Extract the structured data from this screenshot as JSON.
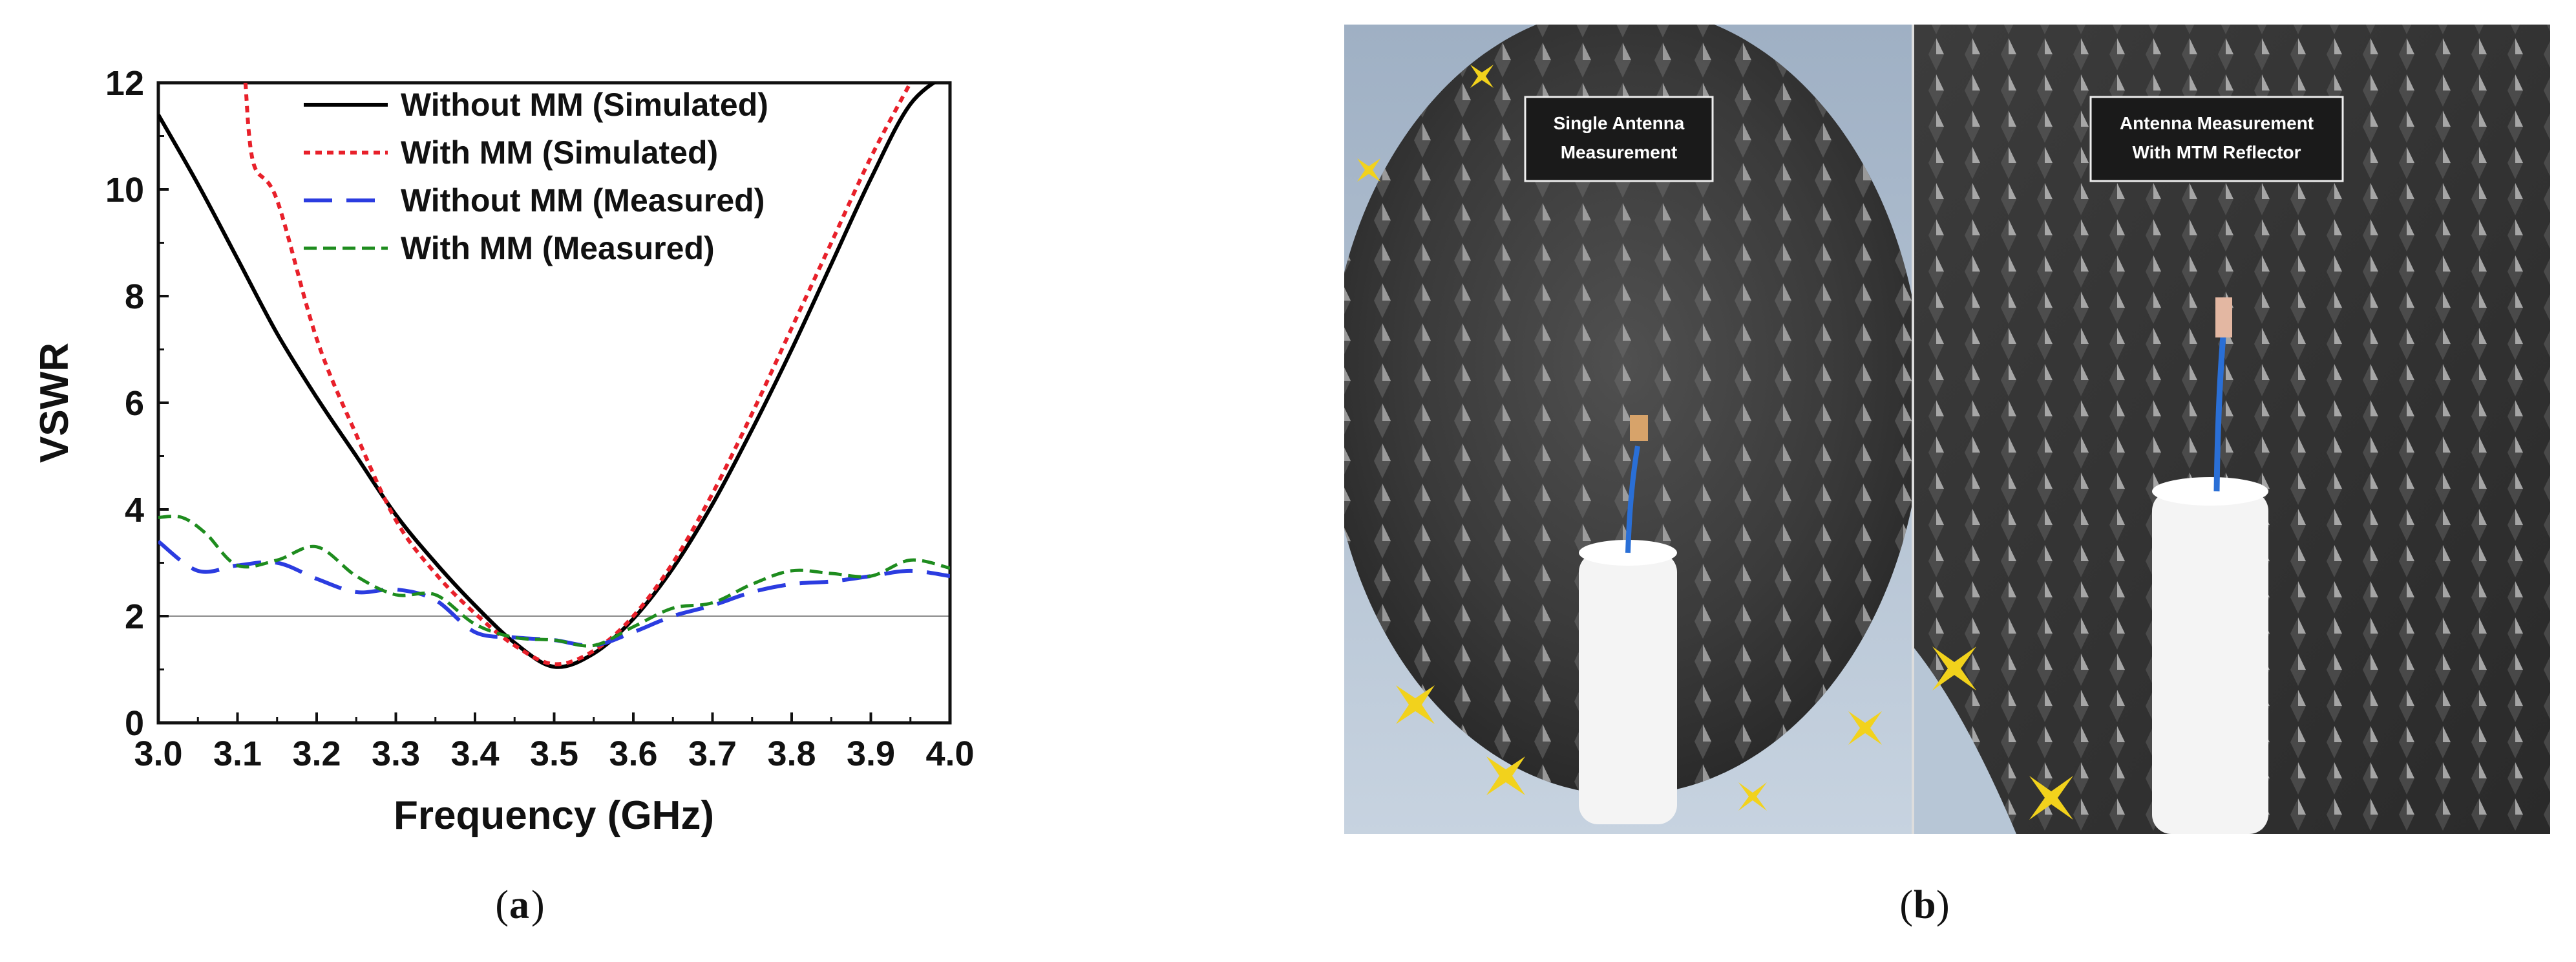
{
  "chart_data": {
    "type": "line",
    "xlabel": "Frequency (GHz)",
    "ylabel": "VSWR",
    "xlim": [
      3.0,
      4.0
    ],
    "ylim": [
      0,
      12
    ],
    "xticks": [
      "3.0",
      "3.1",
      "3.2",
      "3.3",
      "3.4",
      "3.5",
      "3.6",
      "3.7",
      "3.8",
      "3.9",
      "4.0"
    ],
    "yticks": [
      "0",
      "2",
      "4",
      "6",
      "8",
      "10",
      "12"
    ],
    "reference_line": 2,
    "legend_position": "top-inside",
    "series": [
      {
        "name": "Without MM (Simulated)",
        "color": "#000000",
        "style": "solid",
        "x": [
          3.0,
          3.05,
          3.1,
          3.15,
          3.2,
          3.25,
          3.3,
          3.35,
          3.4,
          3.45,
          3.5,
          3.55,
          3.6,
          3.65,
          3.7,
          3.75,
          3.8,
          3.85,
          3.9,
          3.95,
          4.0
        ],
        "y": [
          11.4,
          10.1,
          8.7,
          7.3,
          6.1,
          5.0,
          3.9,
          3.0,
          2.2,
          1.5,
          1.05,
          1.3,
          1.95,
          2.9,
          4.1,
          5.5,
          7.0,
          8.6,
          10.2,
          11.6,
          12.2
        ]
      },
      {
        "name": "With MM (Simulated)",
        "color": "#e8202a",
        "style": "dotted",
        "x": [
          3.11,
          3.12,
          3.15,
          3.2,
          3.25,
          3.3,
          3.35,
          3.4,
          3.45,
          3.5,
          3.55,
          3.6,
          3.65,
          3.7,
          3.75,
          3.8,
          3.85,
          3.9,
          3.95
        ],
        "y": [
          12.0,
          10.5,
          9.8,
          7.2,
          5.4,
          3.8,
          2.8,
          2.05,
          1.45,
          1.1,
          1.35,
          2.0,
          3.0,
          4.3,
          5.8,
          7.4,
          9.0,
          10.6,
          12.0
        ]
      },
      {
        "name": "Without MM (Measured)",
        "color": "#2b3ce0",
        "style": "dashed",
        "x": [
          3.0,
          3.05,
          3.1,
          3.15,
          3.2,
          3.25,
          3.3,
          3.35,
          3.4,
          3.45,
          3.5,
          3.55,
          3.6,
          3.65,
          3.7,
          3.75,
          3.8,
          3.85,
          3.9,
          3.95,
          4.0
        ],
        "y": [
          3.4,
          2.85,
          2.95,
          3.0,
          2.7,
          2.45,
          2.5,
          2.3,
          1.7,
          1.6,
          1.55,
          1.45,
          1.7,
          2.0,
          2.2,
          2.45,
          2.6,
          2.65,
          2.75,
          2.85,
          2.75
        ]
      },
      {
        "name": "With MM (Measured)",
        "color": "#1e8c1e",
        "style": "short-dash",
        "x": [
          3.0,
          3.03,
          3.06,
          3.1,
          3.15,
          3.2,
          3.25,
          3.3,
          3.35,
          3.4,
          3.45,
          3.5,
          3.55,
          3.6,
          3.65,
          3.7,
          3.75,
          3.8,
          3.85,
          3.9,
          3.95,
          4.0
        ],
        "y": [
          3.85,
          3.85,
          3.55,
          2.95,
          3.05,
          3.3,
          2.75,
          2.4,
          2.4,
          1.85,
          1.6,
          1.55,
          1.45,
          1.8,
          2.15,
          2.25,
          2.6,
          2.85,
          2.8,
          2.75,
          3.05,
          2.9
        ]
      }
    ]
  },
  "photo_panel": {
    "left_label_line1": "Single Antenna",
    "left_label_line2": "Measurement",
    "right_label_line1": "Antenna Measurement",
    "right_label_line2": "With MTM Reflector"
  },
  "captions": {
    "a": "a",
    "b": "b"
  }
}
